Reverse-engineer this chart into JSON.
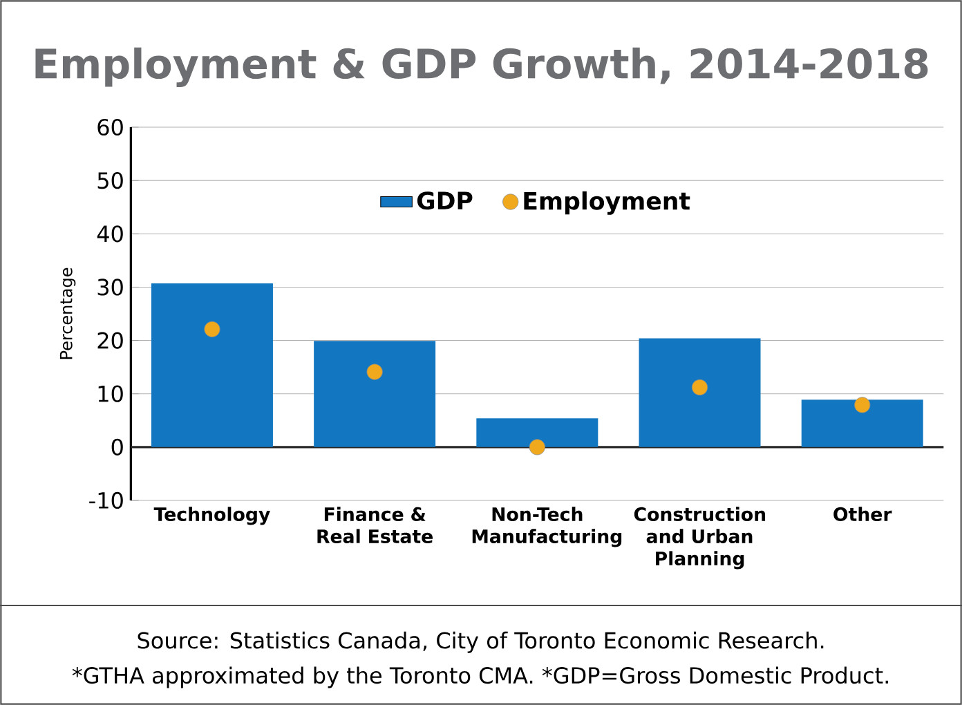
{
  "chart_data": {
    "type": "bar",
    "title": "Employment & GDP Growth, 2014-2018",
    "ylabel": "Percentage",
    "categories": [
      "Technology",
      "Finance & Real Estate",
      "Non-Tech Manufacturing",
      "Construction and Urban Planning",
      "Other"
    ],
    "series": [
      {
        "name": "GDP",
        "color": "#1277c0",
        "values": [
          30.7,
          19.9,
          5.4,
          20.4,
          8.9
        ]
      },
      {
        "name": "Employment",
        "type": "scatter",
        "color": "#f0a81c",
        "values": [
          22.1,
          14.1,
          0,
          11.2,
          7.9
        ]
      }
    ],
    "ylim": [
      -10,
      60
    ],
    "yticks": [
      -10,
      0,
      10,
      20,
      30,
      40,
      50,
      60
    ],
    "grid": "y",
    "legend": "top",
    "ref_lines": [
      {
        "axis": "y",
        "value": 0,
        "color": "#262626"
      }
    ],
    "annotations": [
      "Source: Statistics Canada, City of Toronto Economic Research.",
      "*GTHA approximated by the Toronto CMA. *GDP=Gross Domestic Product."
    ]
  }
}
